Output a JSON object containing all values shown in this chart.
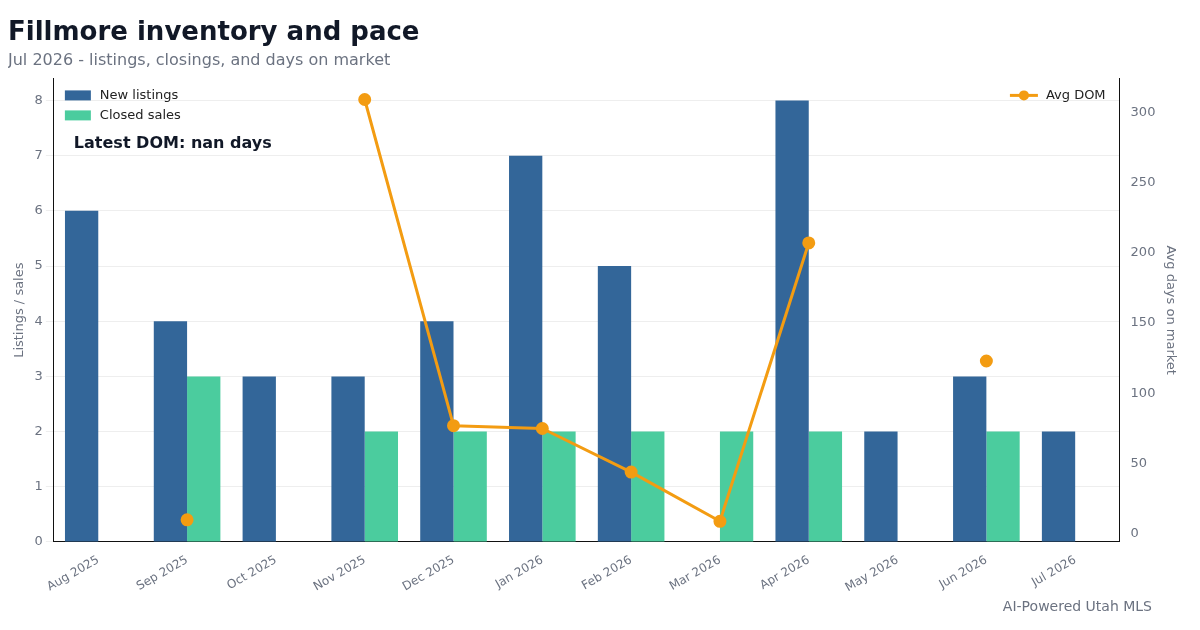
{
  "chart_data": {
    "type": "bar",
    "title": "Fillmore inventory and pace",
    "subtitle": "Jul 2026 - listings, closings, and days on market",
    "categories": [
      "Aug 2025",
      "Sep 2025",
      "Oct 2025",
      "Nov 2025",
      "Dec 2025",
      "Jan 2026",
      "Feb 2026",
      "Mar 2026",
      "Apr 2026",
      "May 2026",
      "Jun 2026",
      "Jul 2026"
    ],
    "series": [
      {
        "name": "New listings",
        "color": "#336699",
        "values": [
          6,
          4,
          3,
          3,
          4,
          7,
          5,
          0,
          8,
          2,
          3,
          2
        ]
      },
      {
        "name": "Closed sales",
        "color": "#4bcc9e",
        "values": [
          0,
          3,
          0,
          2,
          2,
          2,
          2,
          2,
          2,
          0,
          2,
          0
        ]
      },
      {
        "name": "Avg DOM",
        "type": "line",
        "axis": "y2",
        "color": "#f39c12",
        "marker": "circle",
        "values": [
          null,
          10,
          null,
          309,
          77,
          75,
          44,
          9,
          207,
          null,
          123,
          null
        ]
      }
    ],
    "ylabel": "Listings / sales",
    "y2label": "Avg days on market",
    "ylim": [
      0,
      8.4
    ],
    "yticks": [
      0,
      1,
      2,
      3,
      4,
      5,
      6,
      7,
      8
    ],
    "y2lim": [
      -5.7,
      324
    ],
    "y2ticks": [
      0,
      50,
      100,
      150,
      200,
      250,
      300
    ],
    "grid": "y",
    "legend": "top",
    "annotations": [
      "Latest DOM: nan days",
      "AI-Powered Utah MLS"
    ]
  }
}
